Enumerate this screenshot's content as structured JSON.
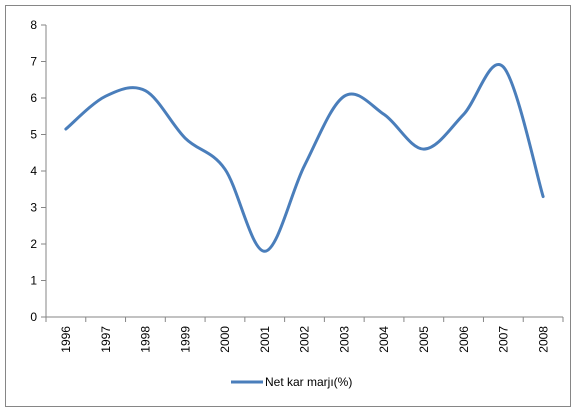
{
  "chart_data": {
    "type": "line",
    "title": "",
    "xlabel": "",
    "ylabel": "",
    "categories": [
      "1996",
      "1997",
      "1998",
      "1999",
      "2000",
      "2001",
      "2002",
      "2003",
      "2004",
      "2005",
      "2006",
      "2007",
      "2008"
    ],
    "series": [
      {
        "name": "Net kar marjı(%)",
        "color": "#4A7EBB",
        "values": [
          5.15,
          6.05,
          6.2,
          4.9,
          4.05,
          1.8,
          4.15,
          6.05,
          5.55,
          4.6,
          5.55,
          6.85,
          3.3
        ]
      }
    ],
    "ylim": [
      0,
      8
    ],
    "yticks": [
      0,
      1,
      2,
      3,
      4,
      5,
      6,
      7,
      8
    ],
    "grid": false,
    "legend_position": "bottom",
    "smooth": true
  }
}
